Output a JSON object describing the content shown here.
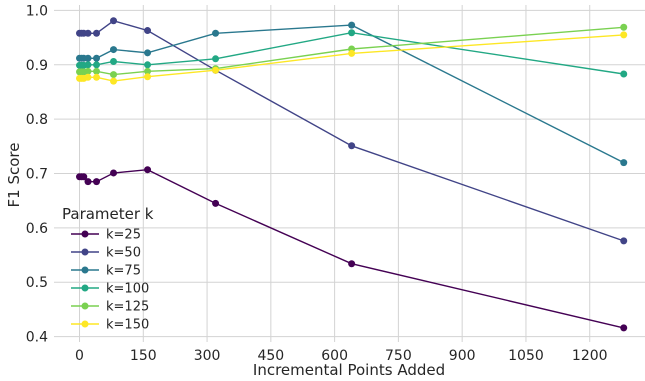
{
  "chart_data": {
    "type": "line",
    "title": "",
    "xlabel": "Incremental Points Added",
    "ylabel": "F1 Score",
    "xlim": [
      -60,
      1330
    ],
    "ylim": [
      0.39,
      1.01
    ],
    "xticks": [
      0,
      150,
      300,
      450,
      600,
      750,
      900,
      1050,
      1200
    ],
    "xtick_labels": [
      "0",
      "150",
      "300",
      "450",
      "600",
      "750",
      "900",
      "1050",
      "1200"
    ],
    "yticks": [
      0.4,
      0.5,
      0.6,
      0.7,
      0.8,
      0.9,
      1.0
    ],
    "ytick_labels": [
      "0.4",
      "0.5",
      "0.6",
      "0.7",
      "0.8",
      "0.9",
      "1.0"
    ],
    "grid": true,
    "legend": {
      "title": "Parameter k",
      "placement": "center-left"
    },
    "x": [
      0,
      5,
      10,
      20,
      40,
      80,
      160,
      320,
      640,
      1280
    ],
    "series": [
      {
        "name": "k=25",
        "color": "#440154",
        "values": [
          0.694,
          0.694,
          0.694,
          0.685,
          0.685,
          0.701,
          0.707,
          0.645,
          0.534,
          0.416
        ]
      },
      {
        "name": "k=50",
        "color": "#414487",
        "values": [
          0.958,
          0.958,
          0.958,
          0.958,
          0.958,
          0.981,
          0.963,
          0.89,
          0.751,
          0.576
        ]
      },
      {
        "name": "k=75",
        "color": "#2a788e",
        "values": [
          0.912,
          0.912,
          0.912,
          0.912,
          0.912,
          0.928,
          0.922,
          0.958,
          0.973,
          0.72
        ]
      },
      {
        "name": "k=100",
        "color": "#22a884",
        "values": [
          0.899,
          0.899,
          0.899,
          0.9,
          0.9,
          0.906,
          0.9,
          0.911,
          0.959,
          0.883
        ]
      },
      {
        "name": "k=125",
        "color": "#7ad151",
        "values": [
          0.887,
          0.887,
          0.887,
          0.888,
          0.888,
          0.882,
          0.888,
          0.893,
          0.929,
          0.969
        ]
      },
      {
        "name": "k=150",
        "color": "#fde725",
        "values": [
          0.875,
          0.875,
          0.875,
          0.877,
          0.877,
          0.87,
          0.878,
          0.89,
          0.921,
          0.955
        ]
      }
    ]
  }
}
